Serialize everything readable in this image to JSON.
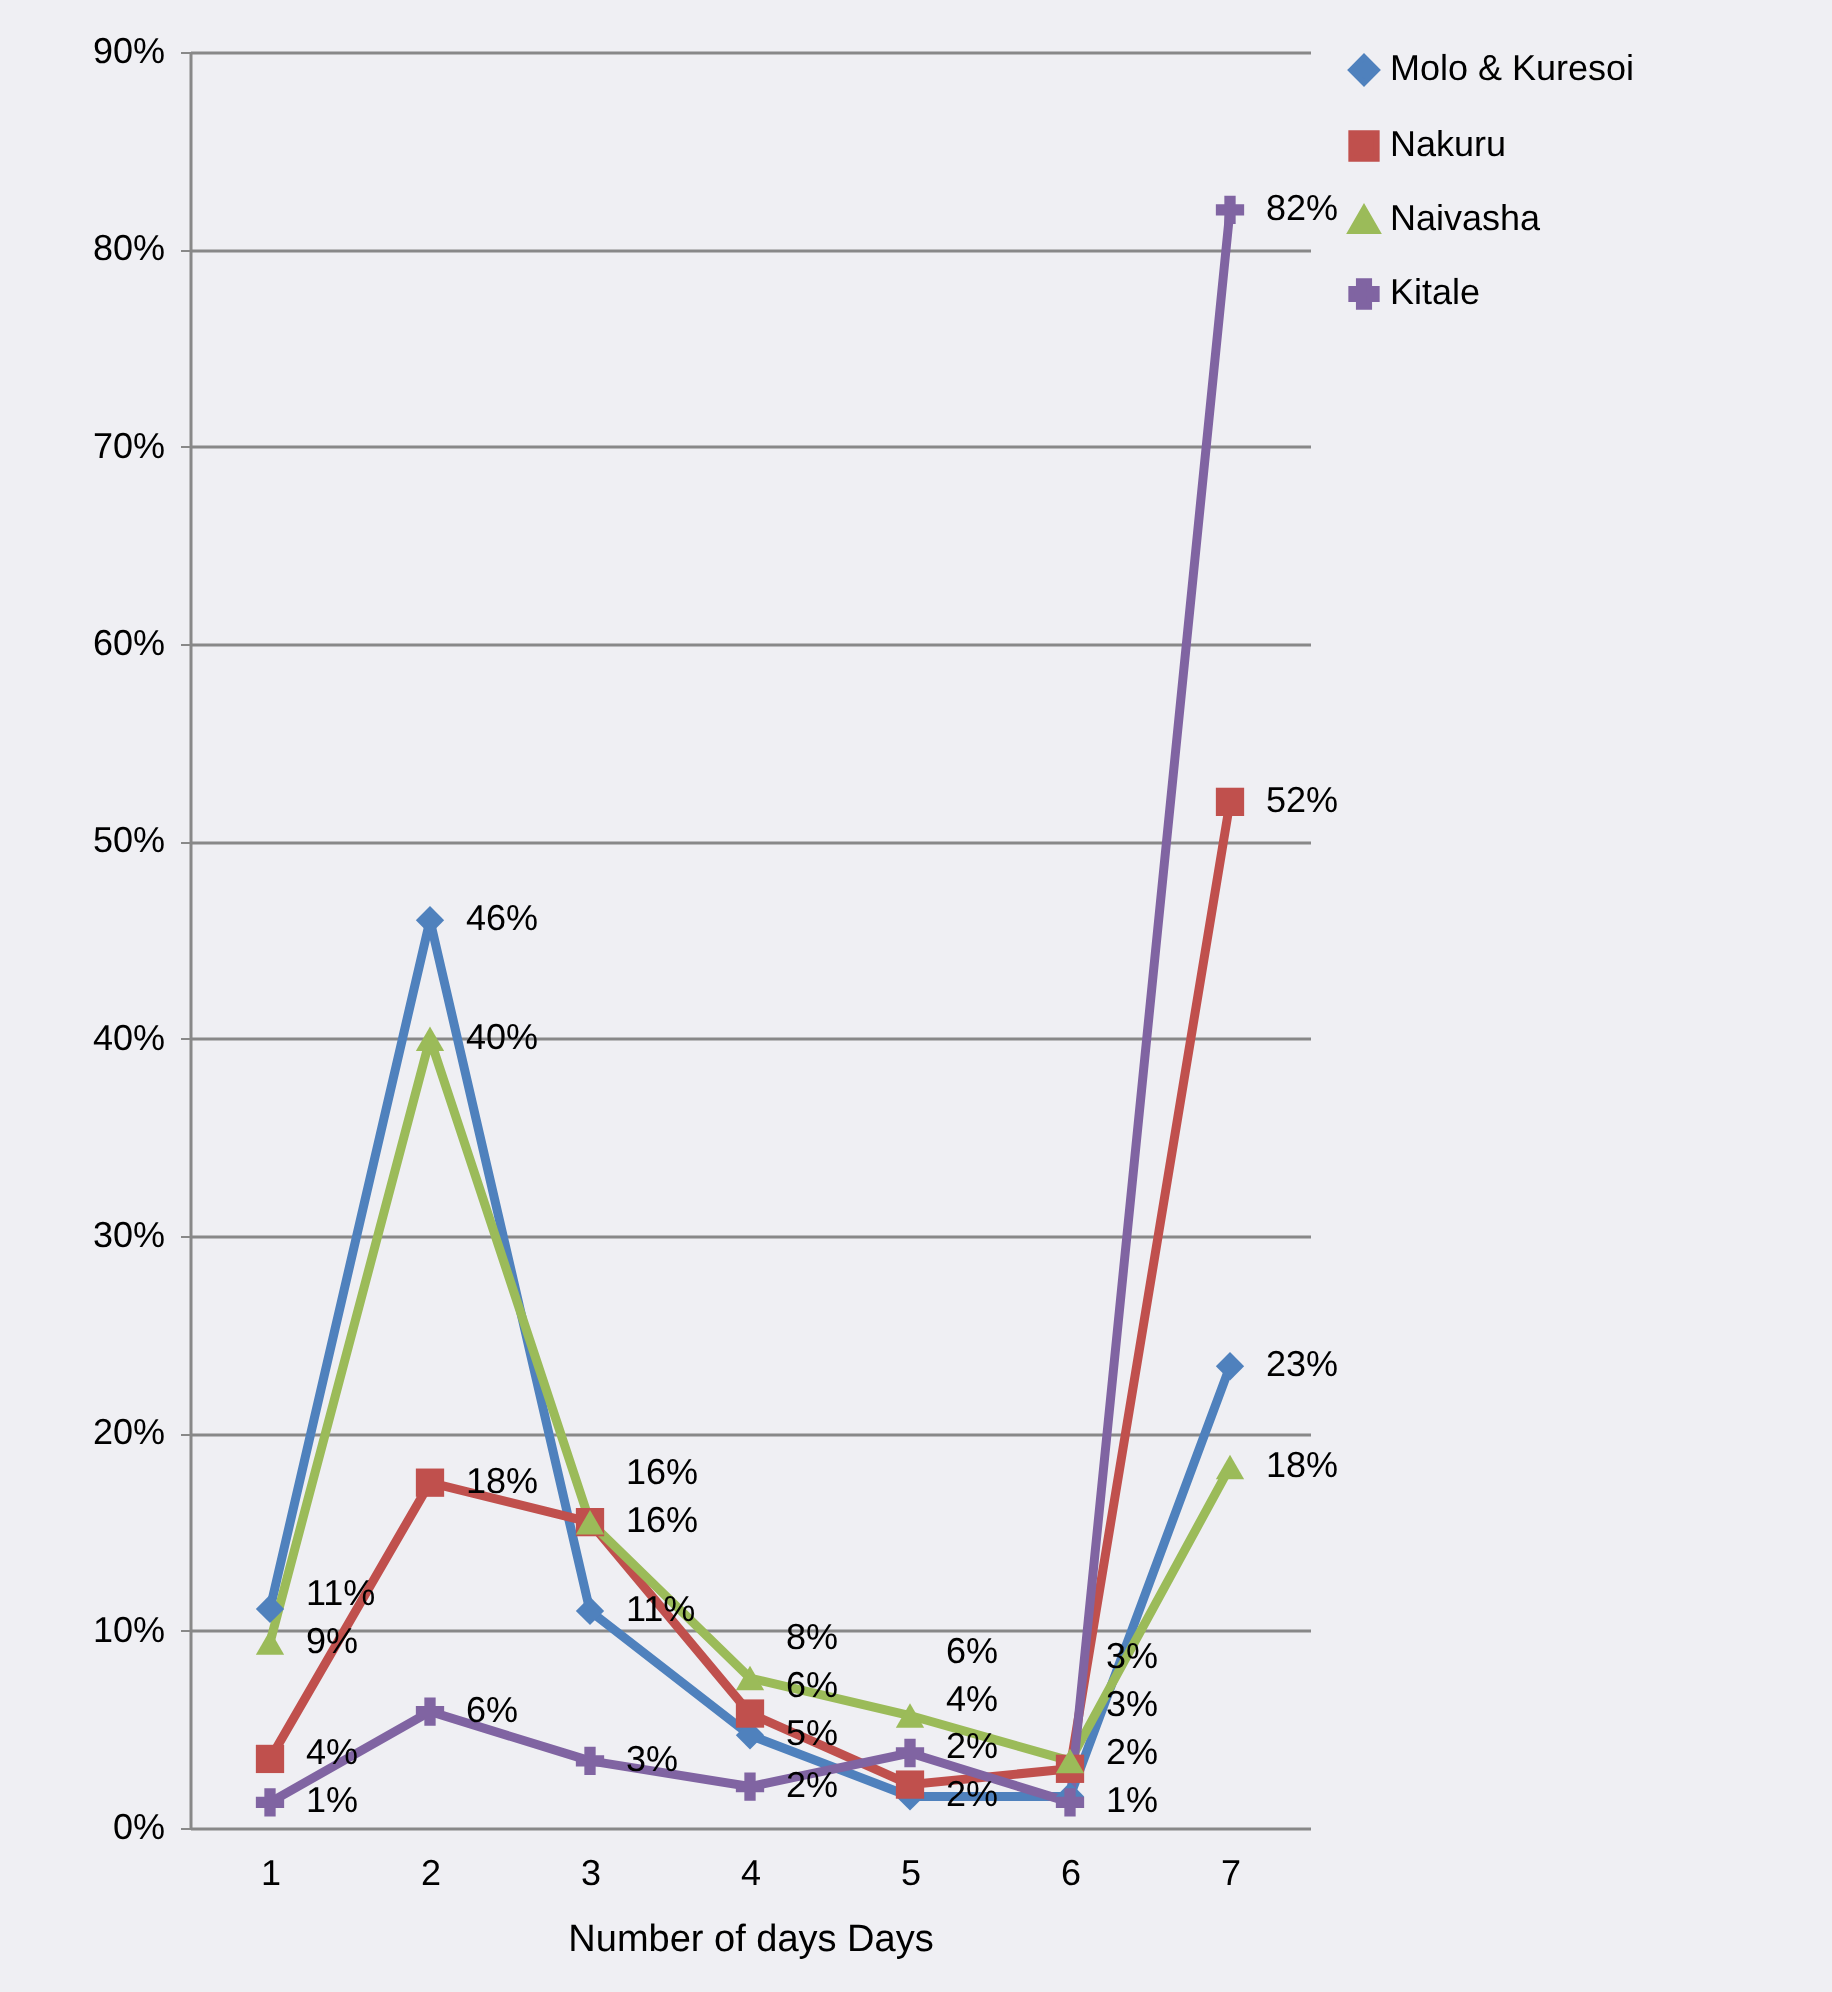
{
  "chart_data": {
    "type": "line",
    "xlabel": "Number of days Days",
    "categories": [
      "1",
      "2",
      "3",
      "4",
      "5",
      "6",
      "7"
    ],
    "ylim": [
      0,
      90
    ],
    "yticks": [
      {
        "value": 0,
        "label": "0%"
      },
      {
        "value": 10,
        "label": "10%"
      },
      {
        "value": 20,
        "label": "20%"
      },
      {
        "value": 30,
        "label": "30%"
      },
      {
        "value": 40,
        "label": "40%"
      },
      {
        "value": 50,
        "label": "50%"
      },
      {
        "value": 60,
        "label": "60%"
      },
      {
        "value": 70,
        "label": "70%"
      },
      {
        "value": 80,
        "label": "80%"
      },
      {
        "value": 90,
        "label": "90%"
      }
    ],
    "grid": "y",
    "legend": "right",
    "series": [
      {
        "name": "Molo & Kuresoi",
        "color": "#4f81bd",
        "marker": "diamond",
        "values": [
          11.1,
          46,
          11,
          4.7,
          1.6,
          1.6,
          23.4
        ],
        "value_labels": [
          "11%",
          "46%",
          "11%",
          "5%",
          "2%",
          "2%",
          "23%"
        ]
      },
      {
        "name": "Nakuru",
        "color": "#c0504d",
        "marker": "square",
        "values": [
          3.5,
          17.5,
          15.5,
          5.8,
          2.2,
          3,
          52
        ],
        "value_labels": [
          "4%",
          "18%",
          "16%",
          "6%",
          "2%",
          "3%",
          "52%"
        ]
      },
      {
        "name": "Naivasha",
        "color": "#9bbb59",
        "marker": "triangle",
        "values": [
          9.4,
          40,
          15.5,
          7.6,
          5.7,
          3.4,
          18.3
        ],
        "value_labels": [
          "9%",
          "40%",
          "16%",
          "8%",
          "6%",
          "3%",
          "18%"
        ]
      },
      {
        "name": "Kitale",
        "color": "#8064a2",
        "marker": "cross",
        "values": [
          1.3,
          5.9,
          3.4,
          2.1,
          3.8,
          1.3,
          82
        ],
        "value_labels": [
          "1%",
          "6%",
          "3%",
          "2%",
          "4%",
          "1%",
          "82%"
        ]
      }
    ]
  }
}
